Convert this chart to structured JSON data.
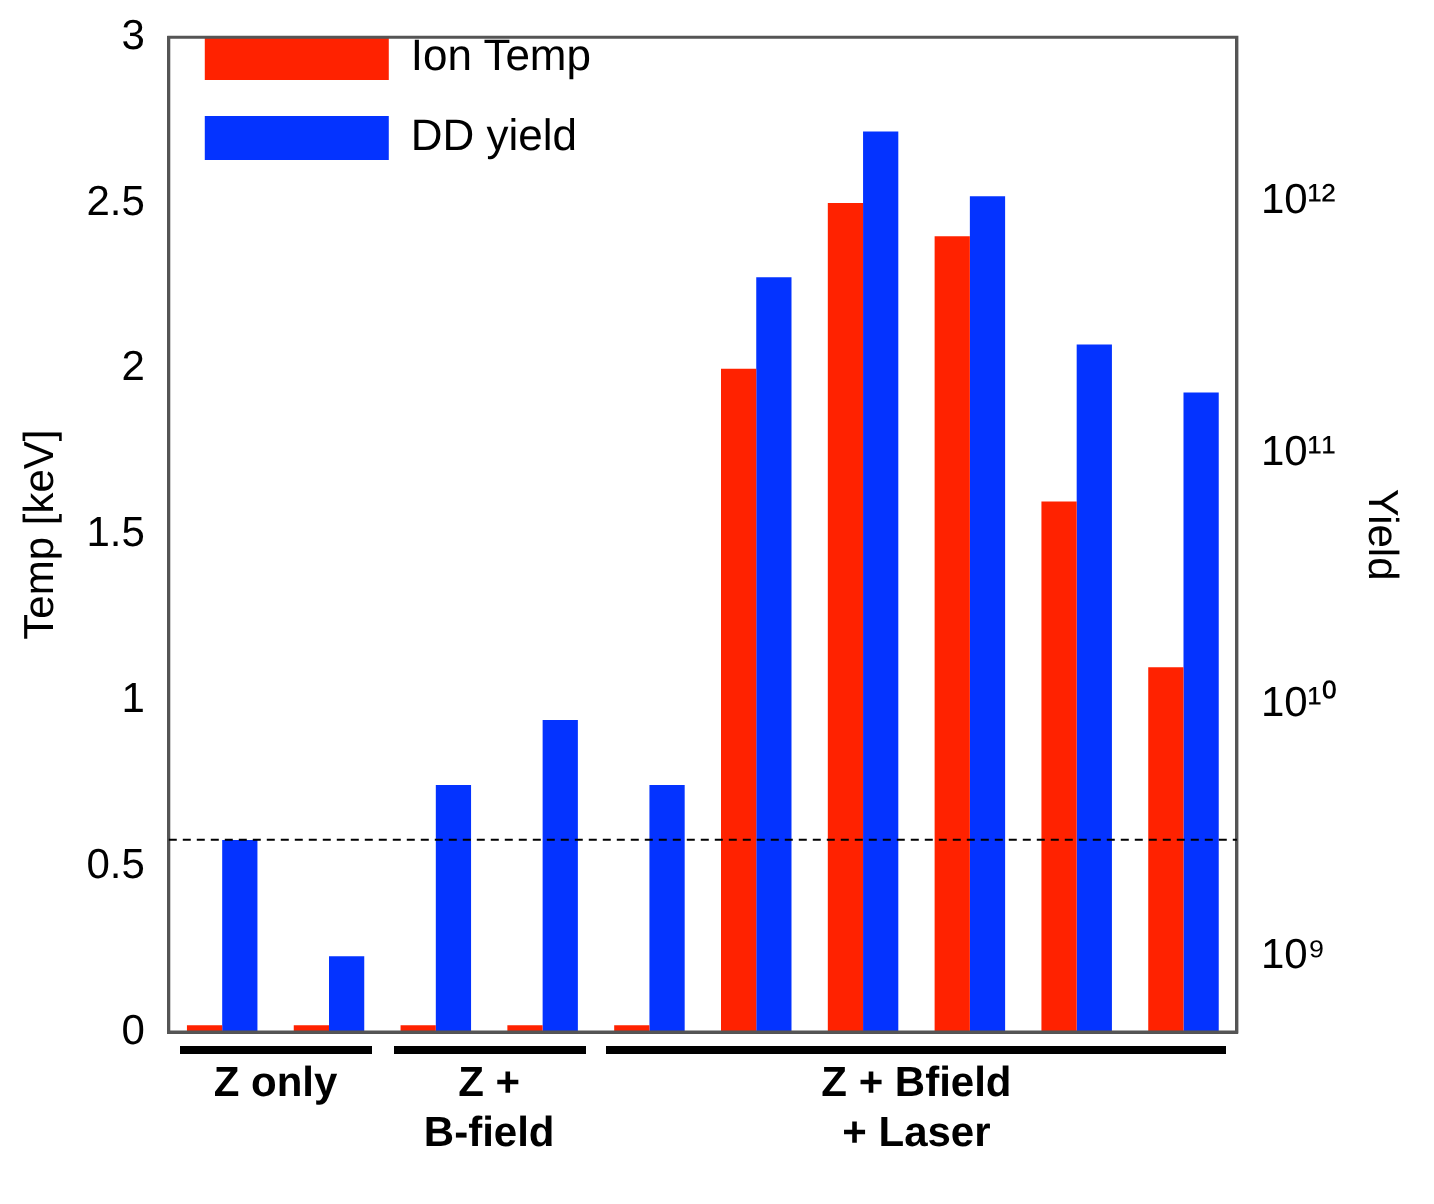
{
  "chart_data": {
    "type": "bar",
    "categories": [
      null,
      null,
      null,
      null,
      null,
      null,
      null,
      null,
      null,
      null
    ],
    "series": [
      {
        "name": "Ion Temp",
        "color": "#ff2200",
        "values": [
          0.02,
          0.02,
          0.02,
          0.02,
          0.02,
          2.0,
          2.5,
          2.4,
          1.6,
          1.1
        ]
      },
      {
        "name": "DD yield",
        "color": "#0433ff",
        "axis": "y2",
        "values": [
          2900000000.0,
          1000000000.0,
          4800000000.0,
          8700000000.0,
          4800000000.0,
          500000000000.0,
          1900000000000.0,
          1050000000000.0,
          270000000000.0,
          174000000000.0
        ]
      }
    ],
    "ylabel": "Temp [keV]",
    "y2label": "Yield",
    "ylim": [
      0,
      3
    ],
    "yticks": [
      0,
      0.5,
      1,
      1.5,
      2,
      2.5,
      3
    ],
    "y2lim": [
      500000000.0,
      4500000000000.0
    ],
    "y2ticks": [
      {
        "value": 1000000000.0,
        "label": "10⁹"
      },
      {
        "value": 10000000000.0,
        "label": "10¹⁰"
      },
      {
        "value": 100000000000.0,
        "label": "10¹¹"
      },
      {
        "value": 1000000000000.0,
        "label": "10¹²"
      }
    ],
    "log": "y2",
    "ref_lines": [
      {
        "axis": "y",
        "value": 0.58,
        "color": "#000000",
        "line_style": "dashed"
      }
    ],
    "annotations": [
      "Z only",
      "Z +\nB-field",
      "Z + Bfield\n+ Laser"
    ],
    "legend": "top left",
    "grid": false,
    "tick_labels": "y"
  }
}
